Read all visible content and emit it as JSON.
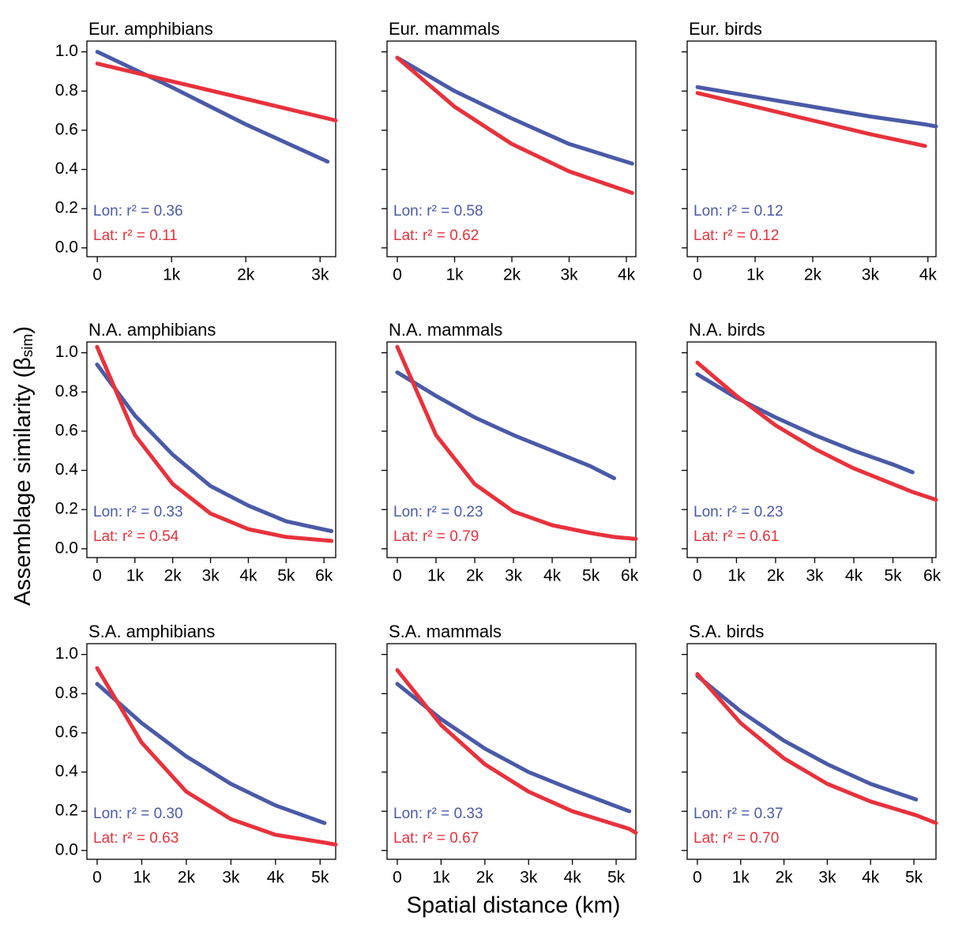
{
  "chart_data": [
    {
      "type": "line",
      "title": "Eur. amphibians",
      "xlim": [
        -140,
        3210
      ],
      "xticks": [
        0,
        {
          "value": 1000,
          "label": "1k"
        },
        {
          "value": 2000,
          "label": "2k"
        },
        {
          "value": 3000,
          "label": "3k"
        }
      ],
      "ylim": [
        -0.045,
        1.055
      ],
      "yticks": [
        {
          "value": 0,
          "label": "0.0"
        },
        0.2,
        0.4,
        0.6,
        0.8,
        {
          "value": 1,
          "label": "1.0"
        }
      ],
      "x": [
        0,
        1000,
        2000,
        3100,
        3210
      ],
      "series": [
        {
          "color": "#4a5aa8",
          "label": "Lon: r² = 0.36",
          "values": [
            1.0,
            0.82,
            0.63,
            0.44,
            null
          ]
        },
        {
          "color": "#e8323c",
          "label": "Lat: r² = 0.11",
          "values": [
            0.94,
            0.85,
            0.76,
            0.66,
            0.65
          ]
        }
      ]
    },
    {
      "type": "line",
      "title": "Eur. mammals",
      "xlim": [
        -180,
        4165
      ],
      "xticks": [
        0,
        {
          "value": 1000,
          "label": "1k"
        },
        {
          "value": 2000,
          "label": "2k"
        },
        {
          "value": 3000,
          "label": "3k"
        },
        {
          "value": 4000,
          "label": "4k"
        }
      ],
      "ylim": [
        -0.045,
        1.055
      ],
      "yticks": [
        {
          "value": 0,
          "label": "0.0"
        },
        0.2,
        0.4,
        0.6,
        0.8,
        {
          "value": 1,
          "label": "1.0"
        }
      ],
      "x": [
        0,
        1000,
        2000,
        3000,
        4100
      ],
      "series": [
        {
          "color": "#4a5aa8",
          "label": "Lon: r² = 0.58",
          "values": [
            0.97,
            0.8,
            0.66,
            0.53,
            0.43
          ]
        },
        {
          "color": "#e8323c",
          "label": "Lat: r² = 0.62",
          "values": [
            0.97,
            0.72,
            0.53,
            0.39,
            0.28
          ]
        }
      ]
    },
    {
      "type": "line",
      "title": "Eur. birds",
      "xlim": [
        -180,
        4140
      ],
      "xticks": [
        0,
        {
          "value": 1000,
          "label": "1k"
        },
        {
          "value": 2000,
          "label": "2k"
        },
        {
          "value": 3000,
          "label": "3k"
        },
        {
          "value": 4000,
          "label": "4k"
        }
      ],
      "ylim": [
        -0.045,
        1.055
      ],
      "yticks": [
        {
          "value": 0,
          "label": "0.0"
        },
        0.2,
        0.4,
        0.6,
        0.8,
        {
          "value": 1,
          "label": "1.0"
        }
      ],
      "x": [
        0,
        1000,
        2000,
        3000,
        3950,
        4140
      ],
      "series": [
        {
          "color": "#4a5aa8",
          "label": "Lon: r² = 0.12",
          "values": [
            0.82,
            0.77,
            0.72,
            0.67,
            0.63,
            0.62
          ]
        },
        {
          "color": "#e8323c",
          "label": "Lat: r² = 0.12",
          "values": [
            0.79,
            0.72,
            0.65,
            0.58,
            0.52,
            null
          ]
        }
      ]
    },
    {
      "type": "line",
      "title": "N.A. amphibians",
      "xlim": [
        -270,
        6310
      ],
      "xticks": [
        0,
        {
          "value": 1000,
          "label": "1k"
        },
        {
          "value": 2000,
          "label": "2k"
        },
        {
          "value": 3000,
          "label": "3k"
        },
        {
          "value": 4000,
          "label": "4k"
        },
        {
          "value": 5000,
          "label": "5k"
        },
        {
          "value": 6000,
          "label": "6k"
        }
      ],
      "ylim": [
        -0.045,
        1.055
      ],
      "yticks": [
        {
          "value": 0,
          "label": "0.0"
        },
        0.2,
        0.4,
        0.6,
        0.8,
        {
          "value": 1,
          "label": "1.0"
        }
      ],
      "x": [
        0,
        1000,
        2000,
        3000,
        4000,
        5000,
        6200
      ],
      "series": [
        {
          "color": "#4a5aa8",
          "label": "Lon: r² = 0.33",
          "values": [
            0.94,
            0.68,
            0.48,
            0.32,
            0.22,
            0.14,
            0.09
          ]
        },
        {
          "color": "#e8323c",
          "label": "Lat: r² = 0.54",
          "values": [
            1.03,
            0.58,
            0.33,
            0.18,
            0.1,
            0.06,
            0.04
          ]
        }
      ]
    },
    {
      "type": "line",
      "title": "N.A. mammals",
      "xlim": [
        -265,
        6160
      ],
      "xticks": [
        0,
        {
          "value": 1000,
          "label": "1k"
        },
        {
          "value": 2000,
          "label": "2k"
        },
        {
          "value": 3000,
          "label": "3k"
        },
        {
          "value": 4000,
          "label": "4k"
        },
        {
          "value": 5000,
          "label": "5k"
        },
        {
          "value": 6000,
          "label": "6k"
        }
      ],
      "ylim": [
        -0.045,
        1.055
      ],
      "yticks": [
        {
          "value": 0,
          "label": "0.0"
        },
        0.2,
        0.4,
        0.6,
        0.8,
        {
          "value": 1,
          "label": "1.0"
        }
      ],
      "x": [
        0,
        1000,
        2000,
        3000,
        4000,
        5000,
        5600,
        6160
      ],
      "series": [
        {
          "color": "#4a5aa8",
          "label": "Lon: r² = 0.23",
          "values": [
            0.9,
            0.78,
            0.67,
            0.58,
            0.5,
            0.42,
            0.36,
            null
          ]
        },
        {
          "color": "#e8323c",
          "label": "Lat: r² = 0.79",
          "values": [
            1.03,
            0.58,
            0.33,
            0.19,
            0.12,
            0.08,
            0.06,
            0.05
          ]
        }
      ]
    },
    {
      "type": "line",
      "title": "N.A. birds",
      "xlim": [
        -260,
        6100
      ],
      "xticks": [
        0,
        {
          "value": 1000,
          "label": "1k"
        },
        {
          "value": 2000,
          "label": "2k"
        },
        {
          "value": 3000,
          "label": "3k"
        },
        {
          "value": 4000,
          "label": "4k"
        },
        {
          "value": 5000,
          "label": "5k"
        },
        {
          "value": 6000,
          "label": "6k"
        }
      ],
      "ylim": [
        -0.045,
        1.055
      ],
      "yticks": [
        {
          "value": 0,
          "label": "0.0"
        },
        0.2,
        0.4,
        0.6,
        0.8,
        {
          "value": 1,
          "label": "1.0"
        }
      ],
      "x": [
        0,
        1000,
        2000,
        3000,
        4000,
        5000,
        5500,
        6100
      ],
      "series": [
        {
          "color": "#4a5aa8",
          "label": "Lon: r² = 0.23",
          "values": [
            0.89,
            0.77,
            0.67,
            0.58,
            0.5,
            0.43,
            0.39,
            null
          ]
        },
        {
          "color": "#e8323c",
          "label": "Lat: r² = 0.61",
          "values": [
            0.95,
            0.78,
            0.63,
            0.51,
            0.41,
            0.33,
            0.29,
            0.25
          ]
        }
      ]
    },
    {
      "type": "line",
      "title": "S.A. amphibians",
      "xlim": [
        -230,
        5350
      ],
      "xticks": [
        0,
        {
          "value": 1000,
          "label": "1k"
        },
        {
          "value": 2000,
          "label": "2k"
        },
        {
          "value": 3000,
          "label": "3k"
        },
        {
          "value": 4000,
          "label": "4k"
        },
        {
          "value": 5000,
          "label": "5k"
        }
      ],
      "ylim": [
        -0.045,
        1.055
      ],
      "yticks": [
        {
          "value": 0,
          "label": "0.0"
        },
        0.2,
        0.4,
        0.6,
        0.8,
        {
          "value": 1,
          "label": "1.0"
        }
      ],
      "x": [
        0,
        1000,
        2000,
        3000,
        4000,
        5100,
        5350
      ],
      "series": [
        {
          "color": "#4a5aa8",
          "label": "Lon: r² = 0.30",
          "values": [
            0.85,
            0.65,
            0.48,
            0.34,
            0.23,
            0.14,
            null
          ]
        },
        {
          "color": "#e8323c",
          "label": "Lat: r² = 0.63",
          "values": [
            0.93,
            0.55,
            0.3,
            0.16,
            0.08,
            0.04,
            0.03
          ]
        }
      ]
    },
    {
      "type": "line",
      "title": "S.A. mammals",
      "xlim": [
        -235,
        5450
      ],
      "xticks": [
        0,
        {
          "value": 1000,
          "label": "1k"
        },
        {
          "value": 2000,
          "label": "2k"
        },
        {
          "value": 3000,
          "label": "3k"
        },
        {
          "value": 4000,
          "label": "4k"
        },
        {
          "value": 5000,
          "label": "5k"
        }
      ],
      "ylim": [
        -0.045,
        1.055
      ],
      "yticks": [
        {
          "value": 0,
          "label": "0.0"
        },
        0.2,
        0.4,
        0.6,
        0.8,
        {
          "value": 1,
          "label": "1.0"
        }
      ],
      "x": [
        0,
        1000,
        2000,
        3000,
        4000,
        5300,
        5450
      ],
      "series": [
        {
          "color": "#4a5aa8",
          "label": "Lon: r² = 0.33",
          "values": [
            0.85,
            0.67,
            0.52,
            0.4,
            0.31,
            0.2,
            null
          ]
        },
        {
          "color": "#e8323c",
          "label": "Lat: r² = 0.67",
          "values": [
            0.92,
            0.64,
            0.44,
            0.3,
            0.2,
            0.11,
            0.09
          ]
        }
      ]
    },
    {
      "type": "line",
      "title": "S.A. birds",
      "xlim": [
        -235,
        5510
      ],
      "xticks": [
        0,
        {
          "value": 1000,
          "label": "1k"
        },
        {
          "value": 2000,
          "label": "2k"
        },
        {
          "value": 3000,
          "label": "3k"
        },
        {
          "value": 4000,
          "label": "4k"
        },
        {
          "value": 5000,
          "label": "5k"
        }
      ],
      "ylim": [
        -0.045,
        1.055
      ],
      "yticks": [
        {
          "value": 0,
          "label": "0.0"
        },
        0.2,
        0.4,
        0.6,
        0.8,
        {
          "value": 1,
          "label": "1.0"
        }
      ],
      "x": [
        0,
        1000,
        2000,
        3000,
        4000,
        5050,
        5510
      ],
      "series": [
        {
          "color": "#4a5aa8",
          "label": "Lon: r² = 0.37",
          "values": [
            0.89,
            0.71,
            0.56,
            0.44,
            0.34,
            0.26,
            null
          ]
        },
        {
          "color": "#e8323c",
          "label": "Lat: r² = 0.70",
          "values": [
            0.9,
            0.65,
            0.47,
            0.34,
            0.25,
            0.18,
            0.14
          ]
        }
      ]
    }
  ],
  "xlabel": "Spatial distance (km)",
  "ylabel": {
    "main": "Assemblage similarity (β",
    "sub": "sim",
    "end": ")"
  }
}
